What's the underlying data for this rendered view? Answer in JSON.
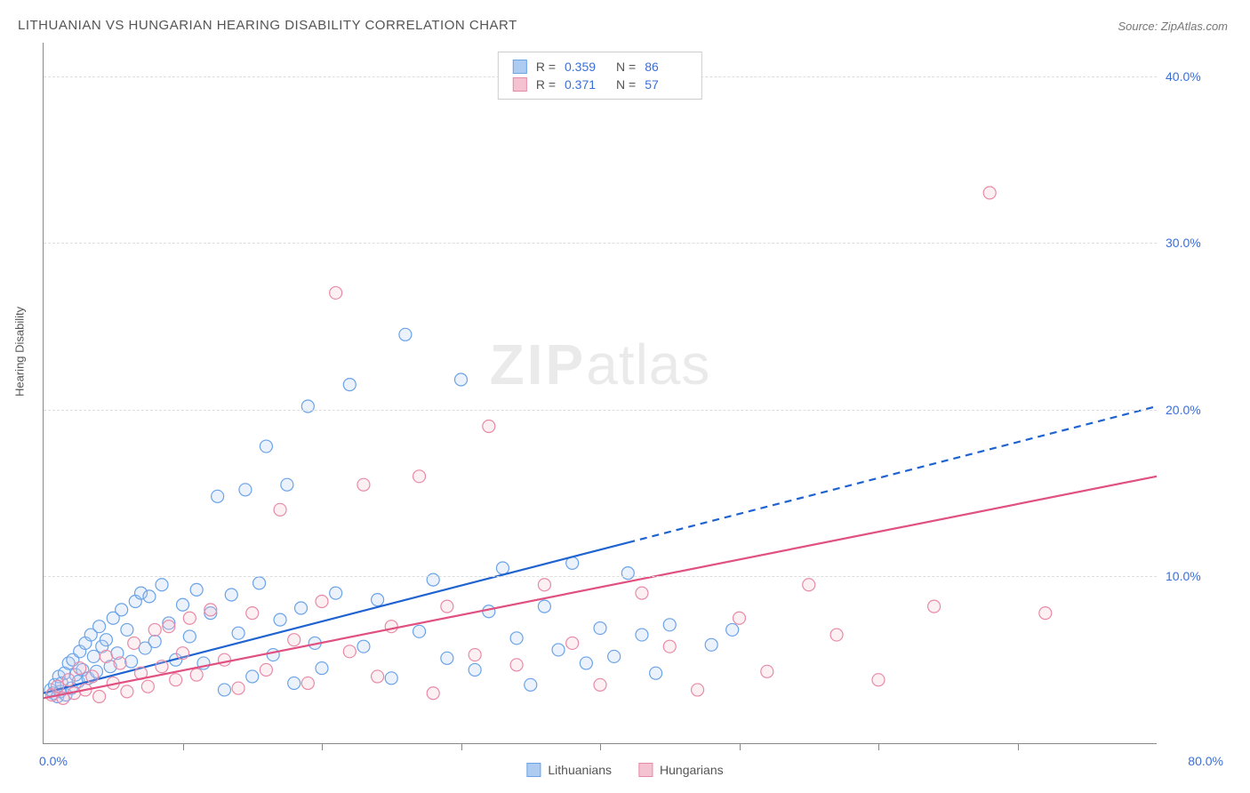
{
  "title": "LITHUANIAN VS HUNGARIAN HEARING DISABILITY CORRELATION CHART",
  "source": "Source: ZipAtlas.com",
  "watermark": {
    "bold": "ZIP",
    "rest": "atlas"
  },
  "ylabel": "Hearing Disability",
  "chart": {
    "type": "scatter",
    "xlim": [
      0,
      80
    ],
    "ylim": [
      0,
      42
    ],
    "x_tick_step": 10,
    "y_grid": [
      10,
      20,
      30,
      40
    ],
    "y_tick_labels": [
      "10.0%",
      "20.0%",
      "30.0%",
      "40.0%"
    ],
    "x_left_label": "0.0%",
    "x_right_label": "80.0%",
    "background_color": "#ffffff",
    "grid_color": "#dddddd",
    "axis_color": "#888888",
    "tick_label_color": "#3b6fd6",
    "marker_radius": 7,
    "marker_stroke_width": 1.2,
    "marker_fill_opacity": 0.25,
    "line_width": 2.2,
    "series": [
      {
        "name": "Lithuanians",
        "color_stroke": "#6aa3e8",
        "color_fill": "#aeccf2",
        "line_color": "#1f63d0",
        "R": "0.359",
        "N": "86",
        "trend": {
          "x1": 0,
          "y1": 3.0,
          "x2": 80,
          "y2": 20.2,
          "solid_until_x": 42
        },
        "points": [
          [
            0.5,
            3.2
          ],
          [
            0.7,
            3.0
          ],
          [
            0.8,
            3.5
          ],
          [
            1.0,
            2.8
          ],
          [
            1.1,
            4.0
          ],
          [
            1.2,
            3.1
          ],
          [
            1.3,
            3.6
          ],
          [
            1.5,
            4.2
          ],
          [
            1.6,
            2.9
          ],
          [
            1.8,
            4.8
          ],
          [
            2.0,
            3.3
          ],
          [
            2.1,
            5.0
          ],
          [
            2.3,
            4.1
          ],
          [
            2.5,
            3.7
          ],
          [
            2.6,
            5.5
          ],
          [
            2.8,
            4.4
          ],
          [
            3.0,
            6.0
          ],
          [
            3.2,
            3.9
          ],
          [
            3.4,
            6.5
          ],
          [
            3.6,
            5.2
          ],
          [
            3.8,
            4.3
          ],
          [
            4.0,
            7.0
          ],
          [
            4.2,
            5.8
          ],
          [
            4.5,
            6.2
          ],
          [
            4.8,
            4.6
          ],
          [
            5.0,
            7.5
          ],
          [
            5.3,
            5.4
          ],
          [
            5.6,
            8.0
          ],
          [
            6.0,
            6.8
          ],
          [
            6.3,
            4.9
          ],
          [
            6.6,
            8.5
          ],
          [
            7.0,
            9.0
          ],
          [
            7.3,
            5.7
          ],
          [
            7.6,
            8.8
          ],
          [
            8.0,
            6.1
          ],
          [
            8.5,
            9.5
          ],
          [
            9.0,
            7.2
          ],
          [
            9.5,
            5.0
          ],
          [
            10.0,
            8.3
          ],
          [
            10.5,
            6.4
          ],
          [
            11.0,
            9.2
          ],
          [
            11.5,
            4.8
          ],
          [
            12.0,
            7.8
          ],
          [
            12.5,
            14.8
          ],
          [
            13.0,
            3.2
          ],
          [
            13.5,
            8.9
          ],
          [
            14.0,
            6.6
          ],
          [
            14.5,
            15.2
          ],
          [
            15.0,
            4.0
          ],
          [
            15.5,
            9.6
          ],
          [
            16.0,
            17.8
          ],
          [
            16.5,
            5.3
          ],
          [
            17.0,
            7.4
          ],
          [
            17.5,
            15.5
          ],
          [
            18.0,
            3.6
          ],
          [
            18.5,
            8.1
          ],
          [
            19.0,
            20.2
          ],
          [
            19.5,
            6.0
          ],
          [
            20.0,
            4.5
          ],
          [
            21.0,
            9.0
          ],
          [
            22.0,
            21.5
          ],
          [
            23.0,
            5.8
          ],
          [
            24.0,
            8.6
          ],
          [
            25.0,
            3.9
          ],
          [
            26.0,
            24.5
          ],
          [
            27.0,
            6.7
          ],
          [
            28.0,
            9.8
          ],
          [
            29.0,
            5.1
          ],
          [
            30.0,
            21.8
          ],
          [
            31.0,
            4.4
          ],
          [
            32.0,
            7.9
          ],
          [
            33.0,
            10.5
          ],
          [
            34.0,
            6.3
          ],
          [
            35.0,
            3.5
          ],
          [
            36.0,
            8.2
          ],
          [
            37.0,
            5.6
          ],
          [
            38.0,
            10.8
          ],
          [
            39.0,
            4.8
          ],
          [
            40.0,
            6.9
          ],
          [
            41.0,
            5.2
          ],
          [
            42.0,
            10.2
          ],
          [
            43.0,
            6.5
          ],
          [
            44.0,
            4.2
          ],
          [
            45.0,
            7.1
          ],
          [
            48.0,
            5.9
          ],
          [
            49.5,
            6.8
          ]
        ]
      },
      {
        "name": "Hungarians",
        "color_stroke": "#e88aa7",
        "color_fill": "#f5c2d1",
        "line_color": "#e05080",
        "R": "0.371",
        "N": "57",
        "trend": {
          "x1": 0,
          "y1": 2.7,
          "x2": 80,
          "y2": 16.0,
          "solid_until_x": 80
        },
        "points": [
          [
            0.6,
            2.9
          ],
          [
            1.0,
            3.4
          ],
          [
            1.4,
            2.7
          ],
          [
            1.8,
            3.8
          ],
          [
            2.2,
            3.0
          ],
          [
            2.6,
            4.5
          ],
          [
            3.0,
            3.2
          ],
          [
            3.5,
            4.0
          ],
          [
            4.0,
            2.8
          ],
          [
            4.5,
            5.2
          ],
          [
            5.0,
            3.6
          ],
          [
            5.5,
            4.8
          ],
          [
            6.0,
            3.1
          ],
          [
            6.5,
            6.0
          ],
          [
            7.0,
            4.2
          ],
          [
            7.5,
            3.4
          ],
          [
            8.0,
            6.8
          ],
          [
            8.5,
            4.6
          ],
          [
            9.0,
            7.0
          ],
          [
            9.5,
            3.8
          ],
          [
            10.0,
            5.4
          ],
          [
            10.5,
            7.5
          ],
          [
            11.0,
            4.1
          ],
          [
            12.0,
            8.0
          ],
          [
            13.0,
            5.0
          ],
          [
            14.0,
            3.3
          ],
          [
            15.0,
            7.8
          ],
          [
            16.0,
            4.4
          ],
          [
            17.0,
            14.0
          ],
          [
            18.0,
            6.2
          ],
          [
            19.0,
            3.6
          ],
          [
            20.0,
            8.5
          ],
          [
            21.0,
            27.0
          ],
          [
            22.0,
            5.5
          ],
          [
            23.0,
            15.5
          ],
          [
            24.0,
            4.0
          ],
          [
            25.0,
            7.0
          ],
          [
            27.0,
            16.0
          ],
          [
            28.0,
            3.0
          ],
          [
            29.0,
            8.2
          ],
          [
            31.0,
            5.3
          ],
          [
            32.0,
            19.0
          ],
          [
            34.0,
            4.7
          ],
          [
            36.0,
            9.5
          ],
          [
            38.0,
            6.0
          ],
          [
            40.0,
            3.5
          ],
          [
            43.0,
            9.0
          ],
          [
            45.0,
            5.8
          ],
          [
            47.0,
            3.2
          ],
          [
            50.0,
            7.5
          ],
          [
            52.0,
            4.3
          ],
          [
            55.0,
            9.5
          ],
          [
            57.0,
            6.5
          ],
          [
            60.0,
            3.8
          ],
          [
            64.0,
            8.2
          ],
          [
            68.0,
            33.0
          ],
          [
            72.0,
            7.8
          ]
        ]
      }
    ]
  },
  "legend_bottom": [
    {
      "label": "Lithuanians",
      "stroke": "#6aa3e8",
      "fill": "#aeccf2"
    },
    {
      "label": "Hungarians",
      "stroke": "#e88aa7",
      "fill": "#f5c2d1"
    }
  ]
}
